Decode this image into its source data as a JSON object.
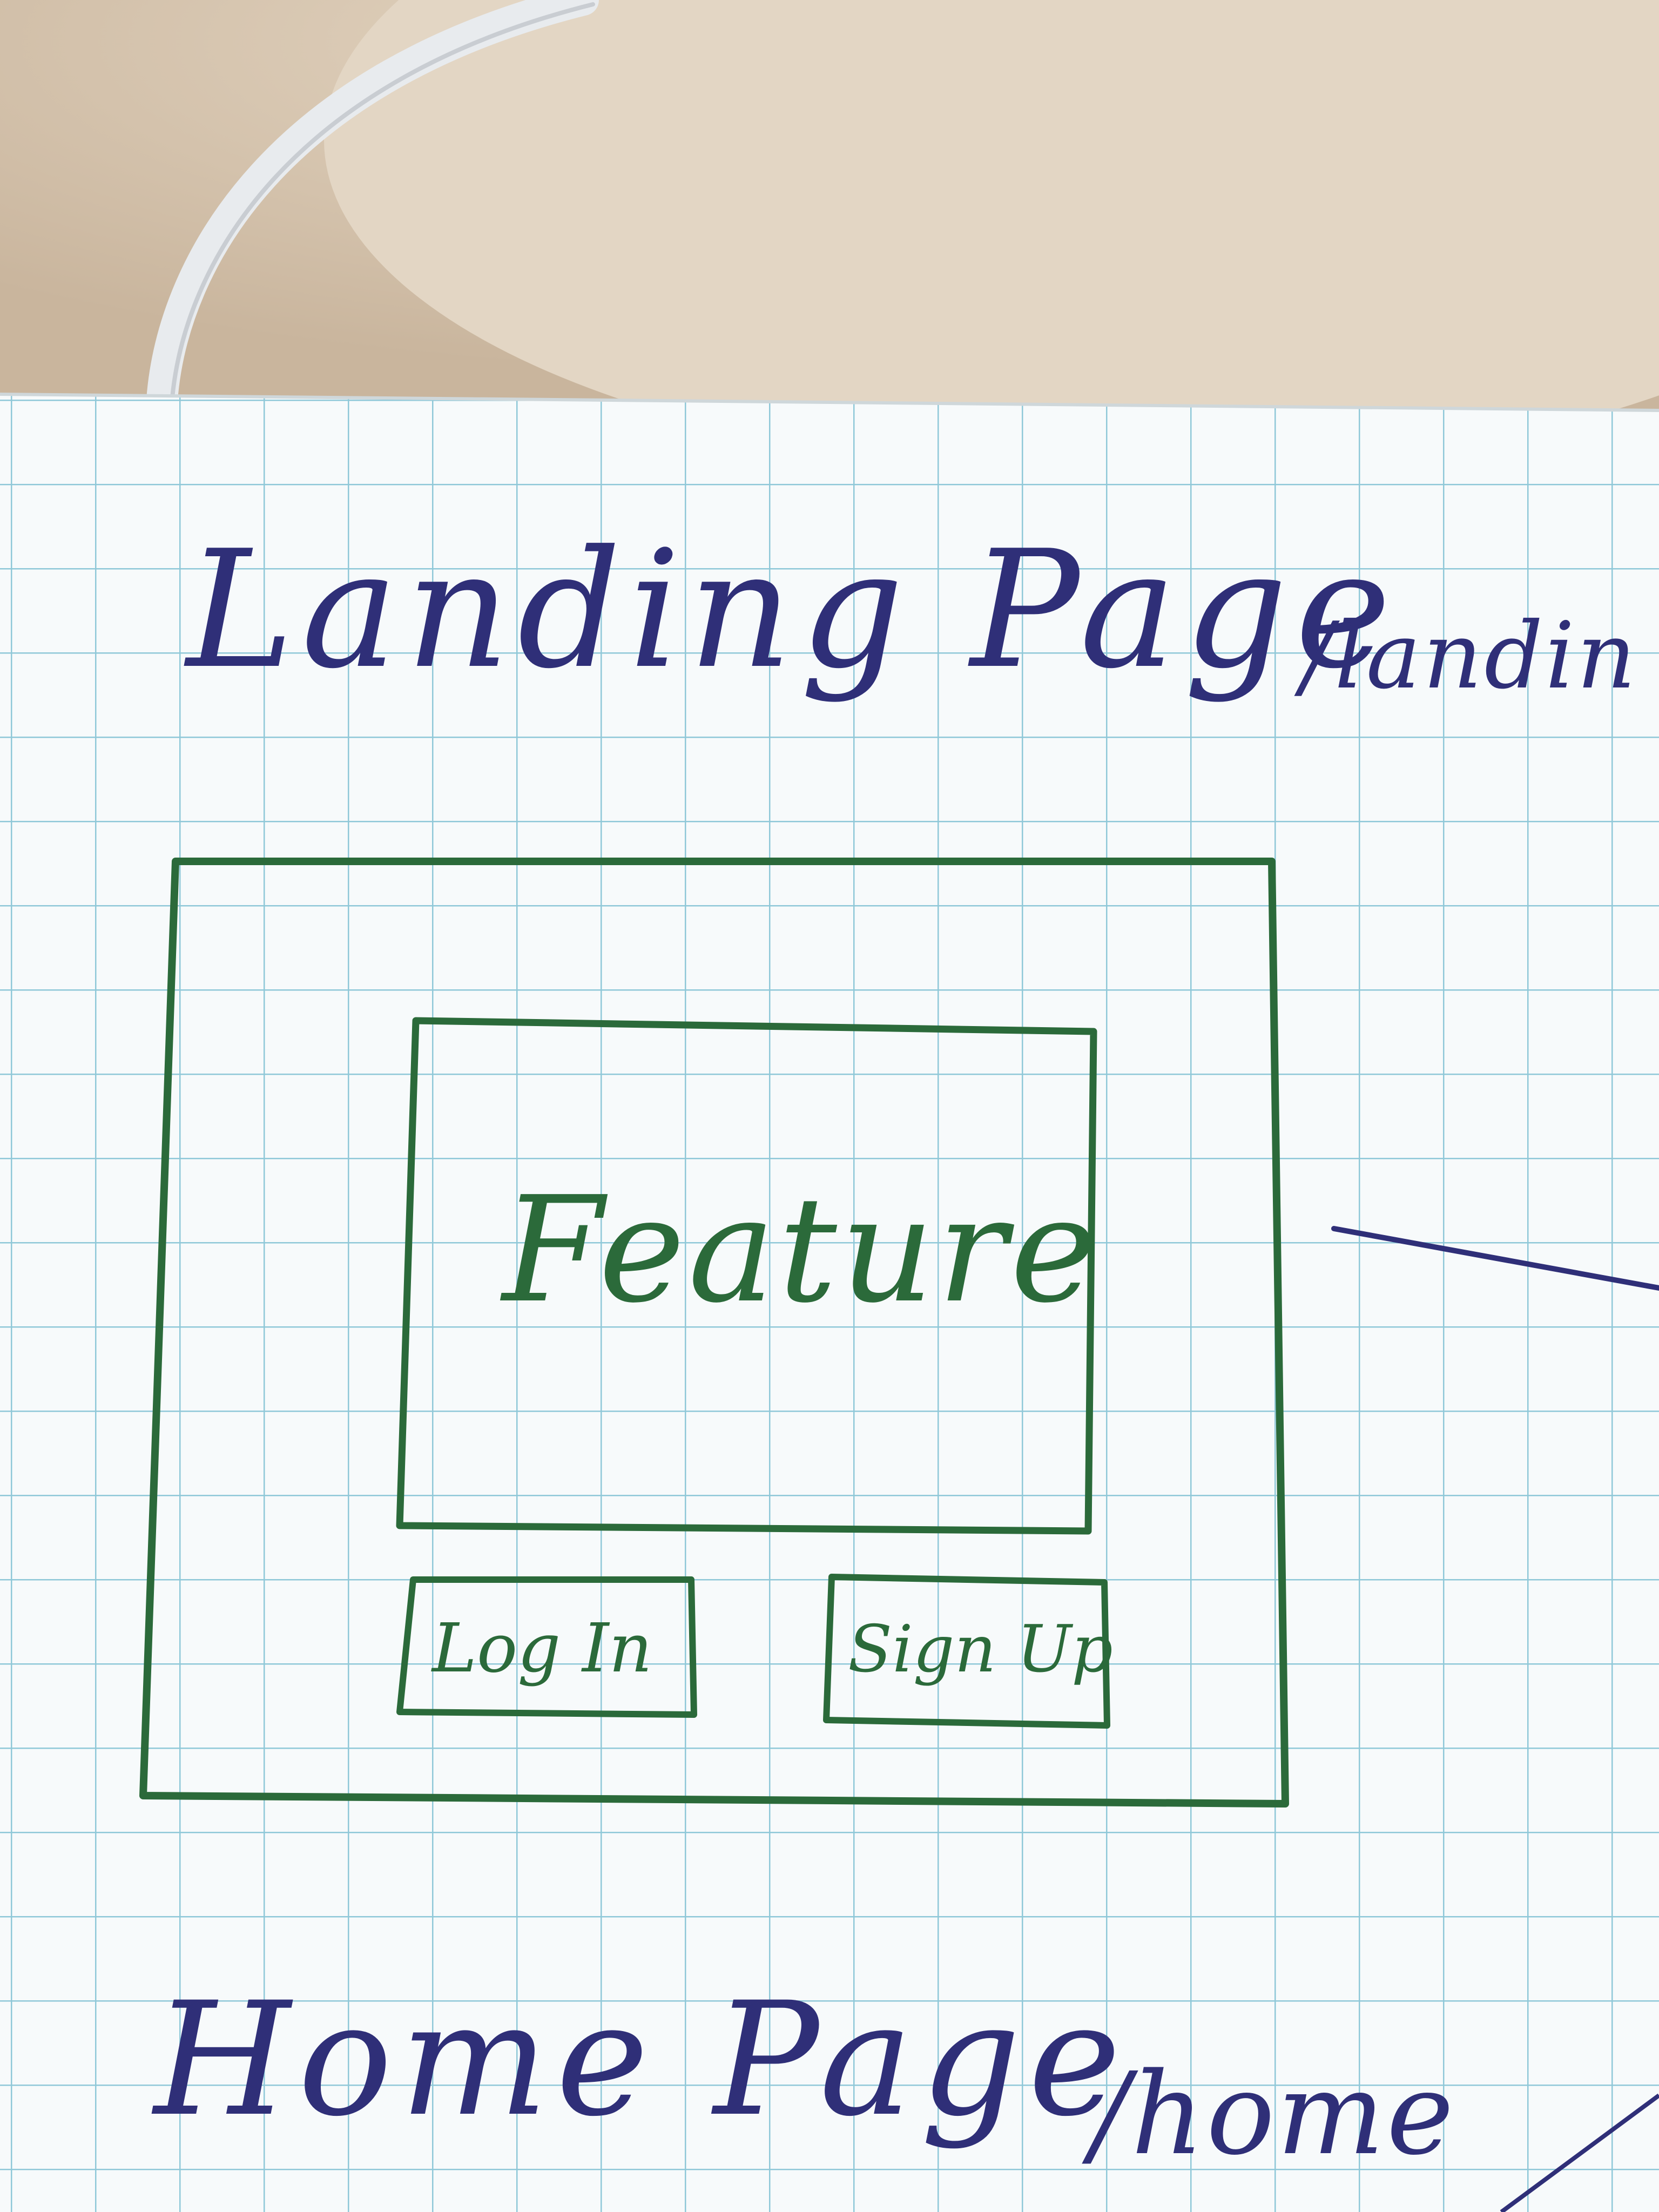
{
  "sketch": {
    "landing_title": "Landing Page",
    "landing_route": "/landin",
    "feature_label": "Feature",
    "login_label": "Log In",
    "signup_label": "Sign Up",
    "home_title": "Home Page",
    "home_route": "/home"
  },
  "colors": {
    "paper": "#f7fafb",
    "grid": "#8fc8d8",
    "blue_ink": "#2f2f78",
    "green_ink": "#2b6a3a",
    "desk": "#d9c9b6"
  }
}
